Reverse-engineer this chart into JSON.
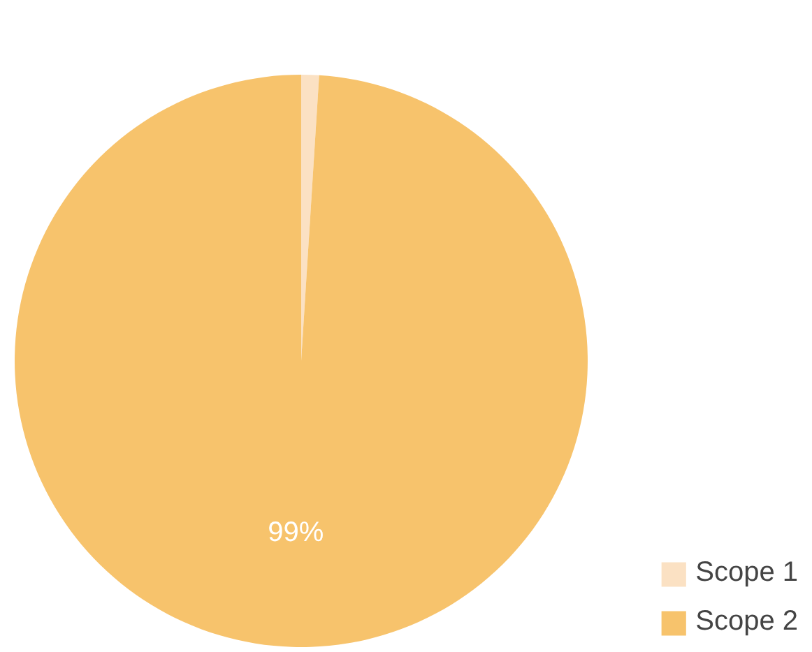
{
  "chart_data": {
    "type": "pie",
    "categories": [
      "Scope 1",
      "Scope 2"
    ],
    "values": [
      1,
      99
    ],
    "colors": [
      "#fbe1c3",
      "#f7c36c"
    ],
    "value_labels": [
      null,
      "99%"
    ],
    "legend": "bottom right"
  }
}
